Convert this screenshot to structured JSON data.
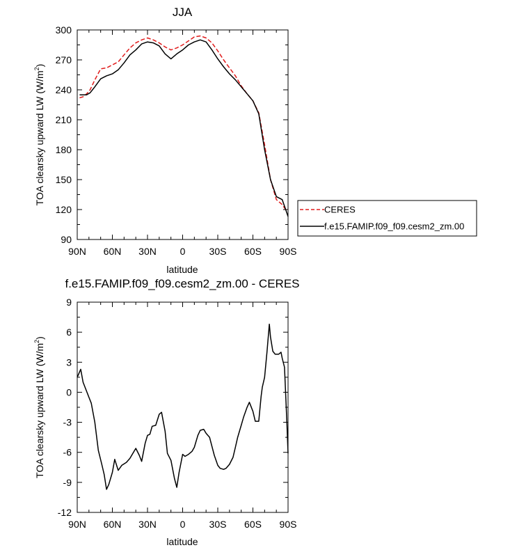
{
  "chart_data": [
    {
      "type": "line",
      "title": "JJA",
      "xlabel": "latitude",
      "ylabel_main": "TOA clearsky upward LW (W/m",
      "ylabel_sup": "2",
      "ylabel_end": ")",
      "xlim": [
        90,
        -90
      ],
      "ylim": [
        90,
        300
      ],
      "xticks": [
        90,
        60,
        30,
        0,
        -30,
        -60,
        -90
      ],
      "xtick_labels": [
        "90N",
        "60N",
        "30N",
        "0",
        "30S",
        "60S",
        "90S"
      ],
      "yticks": [
        90,
        120,
        150,
        180,
        210,
        240,
        270,
        300
      ],
      "ytick_labels": [
        "90",
        "120",
        "150",
        "180",
        "210",
        "240",
        "270",
        "300"
      ],
      "legend": [
        "CERES",
        "f.e15.FAMIP.f09_f09.cesm2_zm.00"
      ],
      "series": [
        {
          "name": "CERES",
          "color": "#e01b1b",
          "dashed": true,
          "x": [
            88,
            85,
            82,
            79,
            75,
            70,
            65,
            60,
            55,
            50,
            45,
            40,
            35,
            30,
            25,
            20,
            15,
            10,
            5,
            0,
            -5,
            -10,
            -15,
            -20,
            -25,
            -30,
            -35,
            -40,
            -45,
            -50,
            -55,
            -60,
            -65,
            -70,
            -75,
            -80,
            -85,
            -88,
            -90
          ],
          "y": [
            232,
            233,
            236,
            240,
            250,
            261,
            262,
            265,
            268,
            275,
            282,
            287,
            290,
            292,
            290,
            287,
            283,
            280,
            282,
            285,
            289,
            293,
            294,
            292,
            287,
            279,
            270,
            262,
            254,
            244,
            236,
            229,
            217,
            185,
            150,
            130,
            125,
            120,
            120
          ]
        },
        {
          "name": "f.e15.FAMIP.f09_f09.cesm2_zm.00",
          "color": "#000000",
          "dashed": false,
          "x": [
            88,
            85,
            82,
            79,
            75,
            70,
            65,
            60,
            55,
            50,
            45,
            40,
            35,
            30,
            25,
            20,
            15,
            10,
            5,
            0,
            -5,
            -10,
            -15,
            -20,
            -25,
            -30,
            -35,
            -40,
            -45,
            -50,
            -55,
            -60,
            -65,
            -70,
            -75,
            -80,
            -85,
            -88,
            -90
          ],
          "y": [
            235,
            235,
            235,
            237,
            243,
            251,
            254,
            256,
            260,
            267,
            275,
            280,
            286,
            288,
            287,
            284,
            276,
            271,
            276,
            280,
            285,
            288,
            290,
            288,
            280,
            271,
            263,
            256,
            250,
            243,
            236,
            229,
            216,
            180,
            150,
            133,
            130,
            120,
            113
          ]
        }
      ]
    },
    {
      "type": "line",
      "title": "f.e15.FAMIP.f09_f09.cesm2_zm.00 - CERES",
      "xlabel": "latitude",
      "ylabel_main": "TOA clearsky upward LW (W/m",
      "ylabel_sup": "2",
      "ylabel_end": ")",
      "xlim": [
        90,
        -90
      ],
      "ylim": [
        -12,
        9
      ],
      "xticks": [
        90,
        60,
        30,
        0,
        -30,
        -60,
        -90
      ],
      "xtick_labels": [
        "90N",
        "60N",
        "30N",
        "0",
        "30S",
        "60S",
        "90S"
      ],
      "yticks": [
        -12,
        -9,
        -6,
        -3,
        0,
        3,
        6,
        9
      ],
      "ytick_labels": [
        "-12",
        "-9",
        "-6",
        "-3",
        "0",
        "3",
        "6",
        "9"
      ],
      "series": [
        {
          "name": "f.e15.FAMIP.f09_f09.cesm2_zm.00 - CERES",
          "color": "#000000",
          "dashed": false,
          "x": [
            90,
            87,
            85,
            80,
            78,
            75,
            72,
            69,
            67,
            65,
            63,
            60,
            58,
            55,
            52,
            48,
            45,
            43,
            40,
            37,
            35,
            32,
            30,
            28,
            26,
            23,
            20,
            18,
            15,
            13,
            10,
            7,
            5,
            3,
            0,
            -2,
            -5,
            -8,
            -10,
            -13,
            -15,
            -18,
            -20,
            -23,
            -25,
            -27,
            -30,
            -32,
            -35,
            -37,
            -40,
            -43,
            -45,
            -47,
            -50,
            -52,
            -55,
            -57,
            -60,
            -62,
            -65,
            -67,
            -68,
            -70,
            -72,
            -74,
            -75,
            -77,
            -79,
            -80,
            -82,
            -84,
            -85,
            -87,
            -89,
            -90
          ],
          "y": [
            1.5,
            2.3,
            1.0,
            -0.5,
            -1.1,
            -3.0,
            -5.8,
            -7.2,
            -8.2,
            -9.7,
            -9.2,
            -8.0,
            -6.7,
            -7.8,
            -7.3,
            -7.0,
            -6.6,
            -6.2,
            -5.6,
            -6.3,
            -6.9,
            -5.1,
            -4.3,
            -4.2,
            -3.4,
            -3.3,
            -2.2,
            -2.0,
            -3.9,
            -6.1,
            -6.8,
            -8.6,
            -9.5,
            -8.0,
            -6.2,
            -6.4,
            -6.2,
            -5.9,
            -5.5,
            -4.3,
            -3.8,
            -3.7,
            -4.1,
            -4.5,
            -5.4,
            -6.3,
            -7.3,
            -7.6,
            -7.7,
            -7.6,
            -7.2,
            -6.5,
            -5.5,
            -4.5,
            -3.3,
            -2.5,
            -1.5,
            -1.0,
            -1.9,
            -2.9,
            -2.9,
            -0.4,
            0.5,
            1.5,
            4.0,
            6.8,
            5.5,
            4.1,
            3.8,
            3.8,
            3.8,
            4.0,
            3.4,
            2.5,
            -3.0,
            -6.1
          ]
        }
      ]
    }
  ]
}
